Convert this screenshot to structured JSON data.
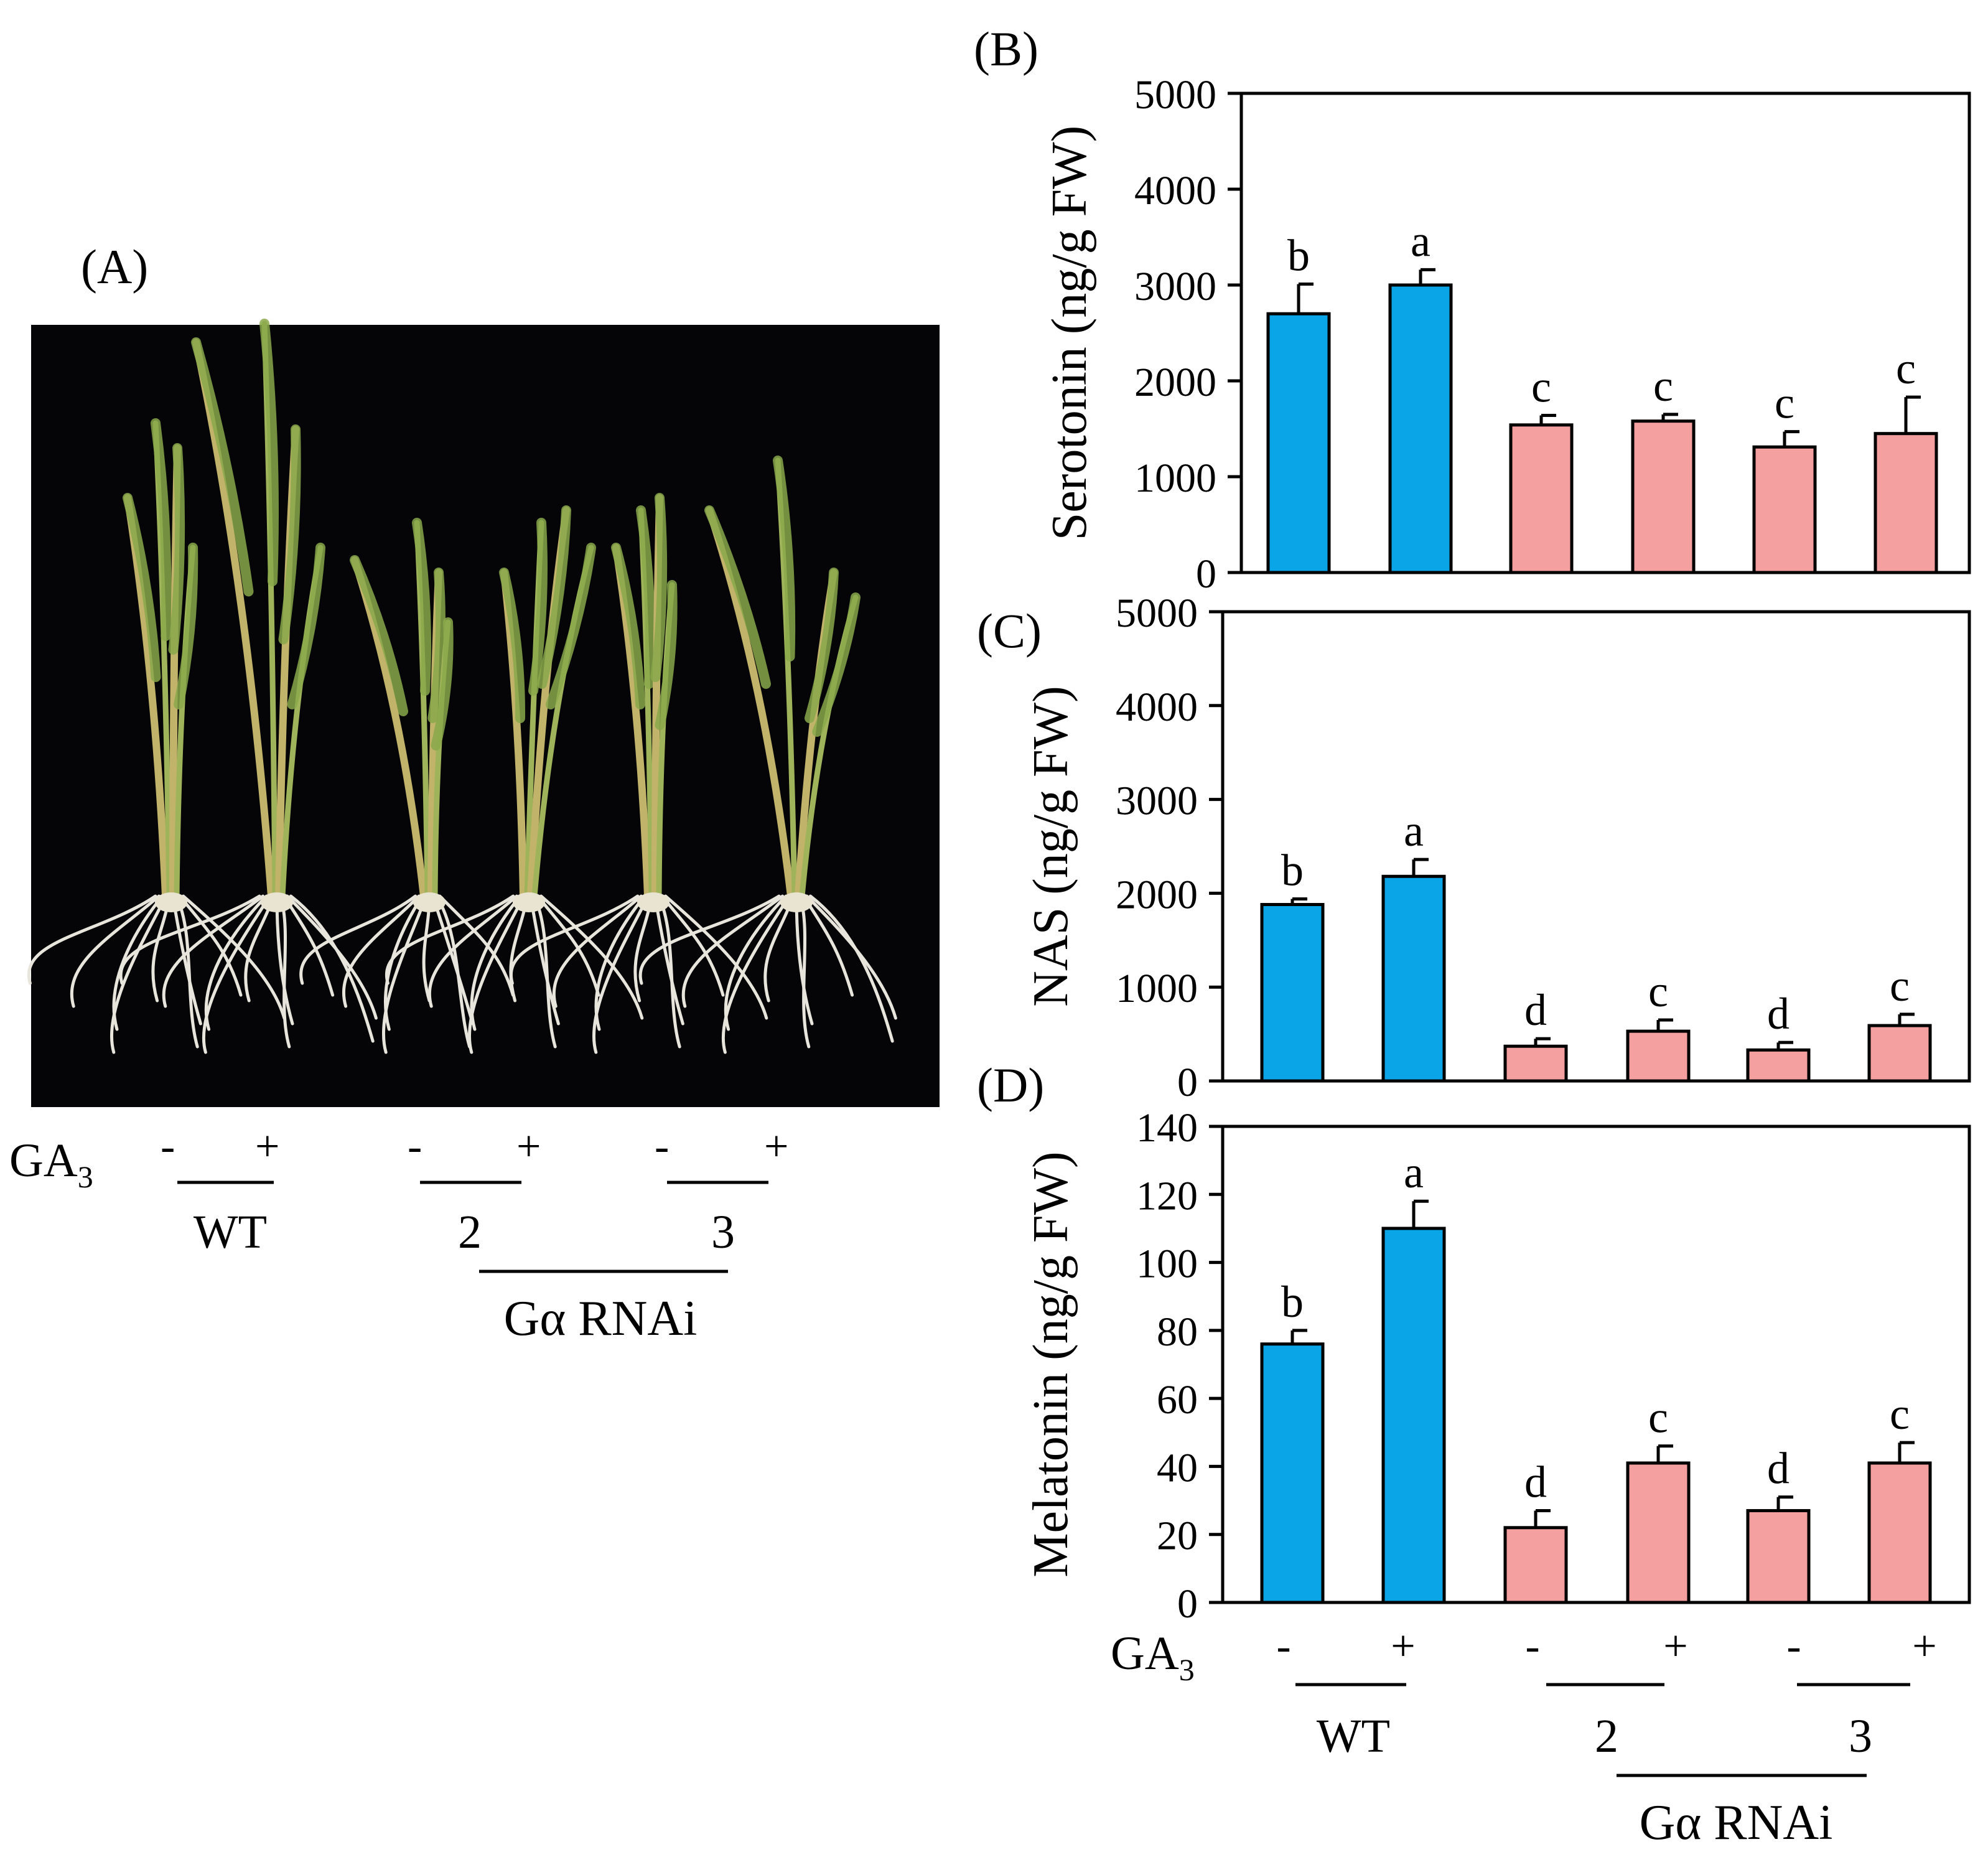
{
  "colors": {
    "wt": "#0aa5e6",
    "rnai": "#f4a0a0",
    "photo_bg": "#050508"
  },
  "panel_a": {
    "label": "(A)",
    "treatment_label": "GA",
    "treatment_sub": "3",
    "minus": "-",
    "plus": "+",
    "groups": [
      "WT",
      "2",
      "3"
    ],
    "rnai_label": "Gα RNAi"
  },
  "chart_data": [
    {
      "type": "bar",
      "panel": "(B)",
      "ylabel": "Serotonin (ng/g FW)",
      "ylim": [
        0,
        5000
      ],
      "yticks": [
        0,
        1000,
        2000,
        3000,
        4000,
        5000
      ],
      "values": [
        2700,
        3000,
        1540,
        1580,
        1310,
        1450
      ],
      "errors": [
        310,
        160,
        100,
        70,
        160,
        380
      ],
      "letters": [
        "b",
        "a",
        "c",
        "c",
        "c",
        "c"
      ],
      "series_groups": [
        "wt",
        "wt",
        "rnai",
        "rnai",
        "rnai",
        "rnai"
      ]
    },
    {
      "type": "bar",
      "panel": "(C)",
      "ylabel": "NAS (ng/g FW)",
      "ylim": [
        0,
        5000
      ],
      "yticks": [
        0,
        1000,
        2000,
        3000,
        4000,
        5000
      ],
      "values": [
        1880,
        2180,
        370,
        530,
        330,
        590
      ],
      "errors": [
        60,
        180,
        80,
        120,
        80,
        120
      ],
      "letters": [
        "b",
        "a",
        "d",
        "c",
        "d",
        "c"
      ],
      "series_groups": [
        "wt",
        "wt",
        "rnai",
        "rnai",
        "rnai",
        "rnai"
      ]
    },
    {
      "type": "bar",
      "panel": "(D)",
      "ylabel": "Melatonin (ng/g FW)",
      "ylim": [
        0,
        140
      ],
      "yticks": [
        0,
        20,
        40,
        60,
        80,
        100,
        120,
        140
      ],
      "values": [
        76,
        110,
        22,
        41,
        27,
        41
      ],
      "errors": [
        4,
        8,
        5,
        5,
        4,
        6
      ],
      "letters": [
        "b",
        "a",
        "d",
        "c",
        "d",
        "c"
      ],
      "series_groups": [
        "wt",
        "wt",
        "rnai",
        "rnai",
        "rnai",
        "rnai"
      ]
    }
  ],
  "x_axis": {
    "treatment_label": "GA",
    "treatment_sub": "3",
    "signs": [
      "-",
      "+",
      "-",
      "+",
      "-",
      "+"
    ],
    "groups": [
      "WT",
      "2",
      "3"
    ],
    "rnai_label": "Gα RNAi"
  }
}
